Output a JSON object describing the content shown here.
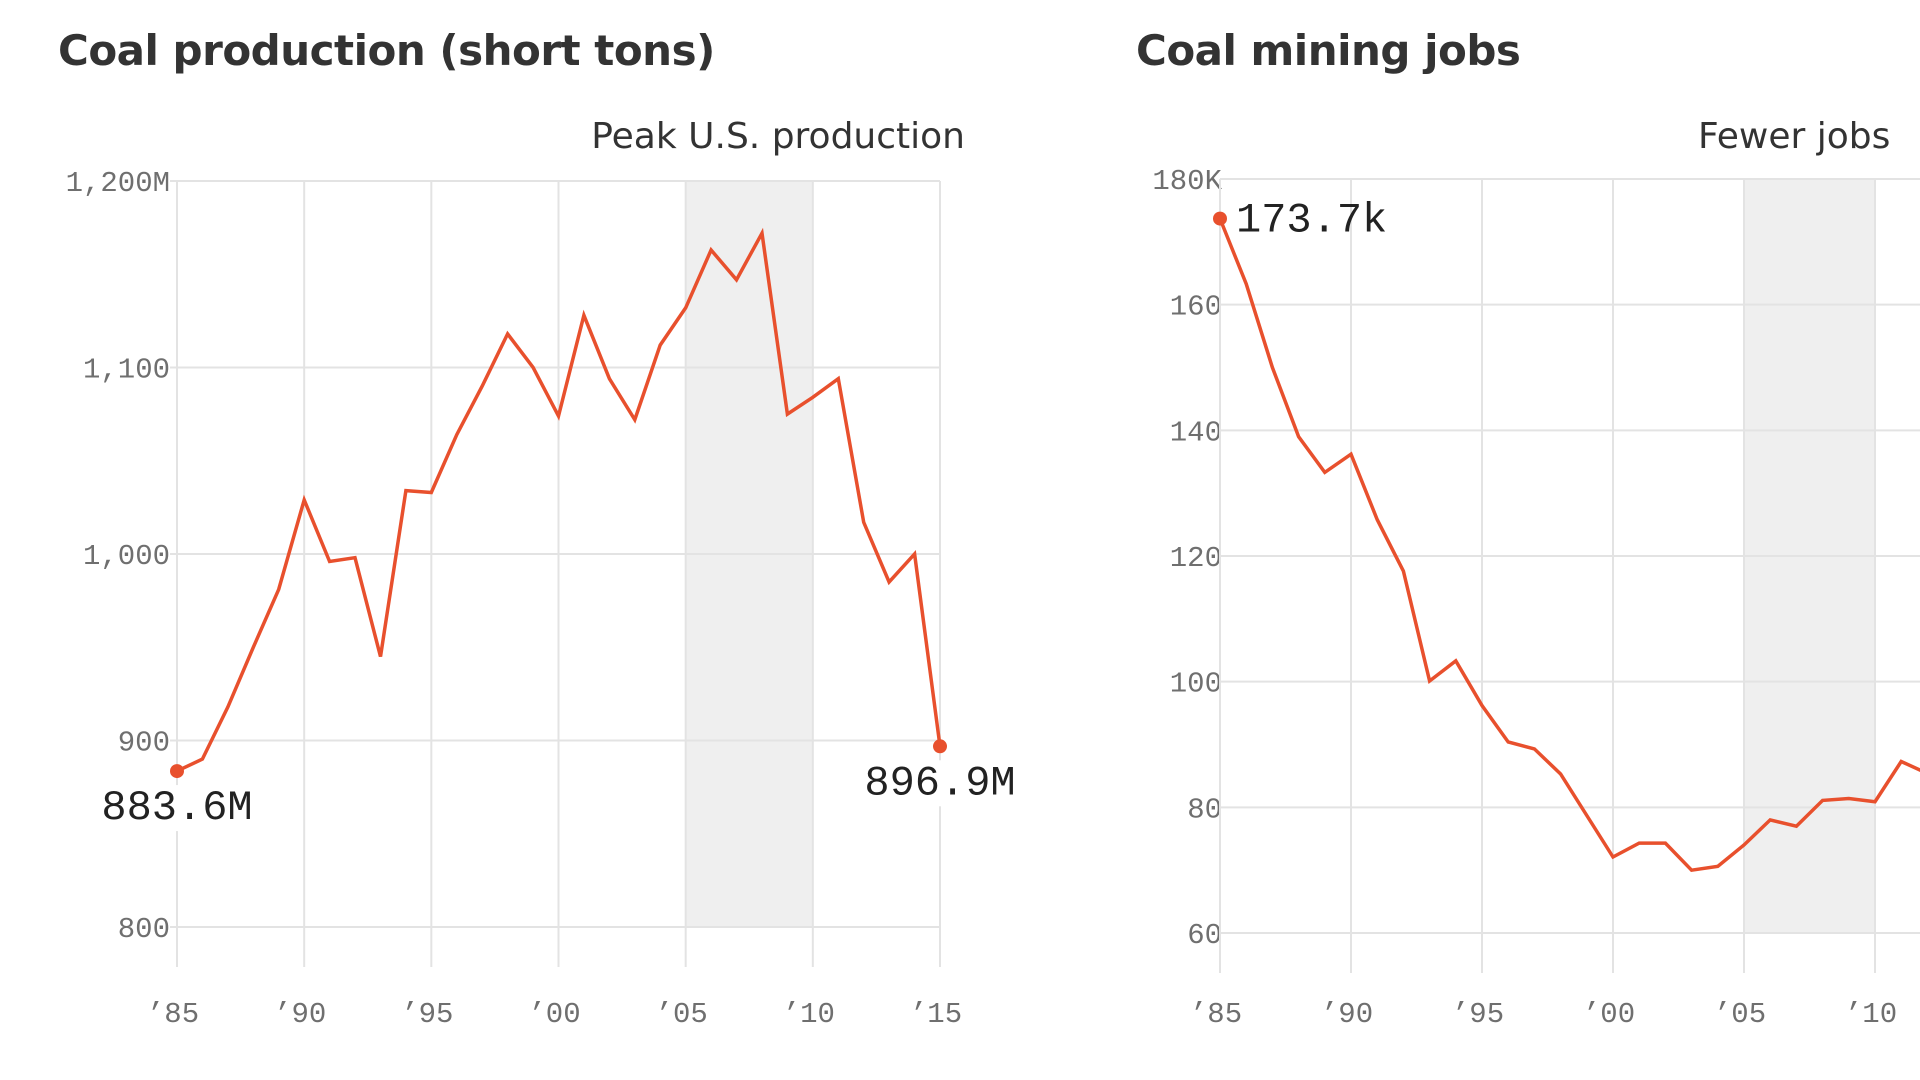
{
  "colors": {
    "line": "#e8502d",
    "grid": "#e3e3e3",
    "shade": "#efefef",
    "title": "#333333",
    "tick": "#6f6f6f",
    "label": "#222222"
  },
  "chart_data": [
    {
      "type": "line",
      "title": "Coal production (short tons)",
      "annotation": "Peak U.S. production",
      "shaded_range": [
        2005,
        2010
      ],
      "xlabel": "",
      "ylabel": "",
      "xlim": [
        1985,
        2015
      ],
      "ylim": [
        800,
        1200
      ],
      "x_ticks": [
        1985,
        1990,
        1995,
        2000,
        2005,
        2010,
        2015
      ],
      "x_tick_labels": [
        "’85",
        "’90",
        "’95",
        "’00",
        "’05",
        "’10",
        "’15"
      ],
      "y_ticks": [
        800,
        900,
        1000,
        1100,
        1200
      ],
      "y_tick_labels": [
        "800",
        "900",
        "1,000",
        "1,100",
        "1,200M"
      ],
      "grid": true,
      "unit": "million short tons",
      "x": [
        1985,
        1986,
        1987,
        1988,
        1989,
        1990,
        1991,
        1992,
        1993,
        1994,
        1995,
        1996,
        1997,
        1998,
        1999,
        2000,
        2001,
        2002,
        2003,
        2004,
        2005,
        2006,
        2007,
        2008,
        2009,
        2010,
        2011,
        2012,
        2013,
        2014,
        2015
      ],
      "series": [
        {
          "name": "Coal production",
          "values": [
            883.6,
            890,
            918,
            950,
            981,
            1029,
            996,
            998,
            945,
            1034,
            1033,
            1064,
            1090,
            1118,
            1100,
            1074,
            1128,
            1094,
            1072,
            1112,
            1132,
            1163,
            1147,
            1172,
            1075,
            1084,
            1094,
            1017,
            985,
            1000,
            896.9
          ]
        }
      ],
      "end_labels": [
        {
          "year": 1985,
          "text": "883.6M"
        },
        {
          "year": 2015,
          "text": "896.9M"
        }
      ]
    },
    {
      "type": "line",
      "title": "Coal mining jobs",
      "annotation": "Fewer jobs",
      "shaded_range": [
        2005,
        2010
      ],
      "xlabel": "",
      "ylabel": "",
      "xlim": [
        1985,
        2015
      ],
      "ylim": [
        60,
        180
      ],
      "x_ticks": [
        1985,
        1990,
        1995,
        2000,
        2005,
        2010
      ],
      "x_tick_labels": [
        "’85",
        "’90",
        "’95",
        "’00",
        "’05",
        "’10"
      ],
      "y_ticks": [
        60,
        80,
        100,
        120,
        140,
        160,
        180
      ],
      "y_tick_labels": [
        "60",
        "80",
        "100",
        "120",
        "140",
        "160",
        "180K"
      ],
      "grid": true,
      "unit": "thousand jobs",
      "x": [
        1985,
        1986,
        1987,
        1988,
        1989,
        1990,
        1991,
        1992,
        1993,
        1994,
        1995,
        1996,
        1997,
        1998,
        1999,
        2000,
        2001,
        2002,
        2003,
        2004,
        2005,
        2006,
        2007,
        2008,
        2009,
        2010,
        2011,
        2012
      ],
      "series": [
        {
          "name": "Coal mining jobs",
          "values": [
            173.7,
            163.3,
            150,
            139,
            133.3,
            136.2,
            125.8,
            117.6,
            100.1,
            103.3,
            96.2,
            90.4,
            89.3,
            85.3,
            78.7,
            72.1,
            74.3,
            74.3,
            70.0,
            70.6,
            74.0,
            78.0,
            77.0,
            81.1,
            81.4,
            80.9,
            87.3,
            85.4
          ]
        }
      ],
      "end_labels": [
        {
          "year": 1985,
          "text": "173.7k"
        }
      ]
    }
  ]
}
